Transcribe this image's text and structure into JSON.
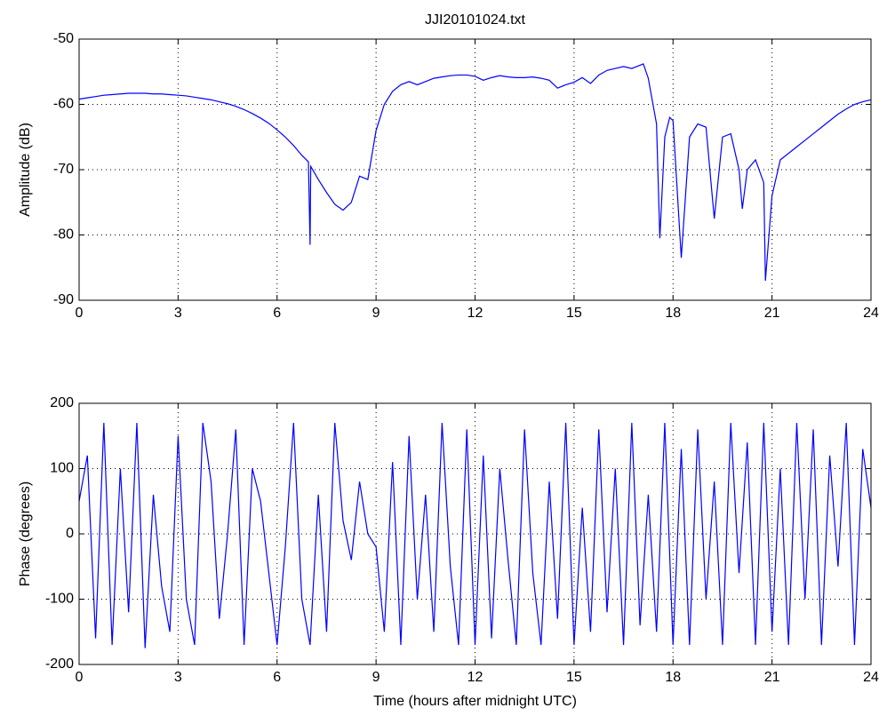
{
  "chart_data": [
    {
      "type": "line",
      "title": "JJI20101024.txt",
      "y_label": "Amplitude (dB)",
      "color": "#0000ff",
      "grid": true,
      "xlim": [
        0,
        24
      ],
      "xticks": [
        0,
        3,
        6,
        9,
        12,
        15,
        18,
        21,
        24
      ],
      "ylim": [
        -90,
        -50
      ],
      "yticks": [
        -90,
        -80,
        -70,
        -60,
        -50
      ],
      "x": [
        0,
        0.25,
        0.5,
        0.75,
        1,
        1.25,
        1.5,
        1.75,
        2,
        2.25,
        2.5,
        2.75,
        3,
        3.25,
        3.5,
        3.75,
        4,
        4.25,
        4.5,
        4.75,
        5,
        5.25,
        5.5,
        5.75,
        6,
        6.25,
        6.5,
        6.75,
        6.95,
        7,
        7.02,
        7.25,
        7.5,
        7.75,
        8,
        8.25,
        8.5,
        8.75,
        9,
        9.25,
        9.5,
        9.75,
        10,
        10.25,
        10.5,
        10.75,
        11,
        11.25,
        11.5,
        11.75,
        12,
        12.25,
        12.5,
        12.75,
        13,
        13.25,
        13.5,
        13.75,
        14,
        14.25,
        14.5,
        14.75,
        15,
        15.25,
        15.5,
        15.75,
        16,
        16.25,
        16.5,
        16.75,
        17,
        17.1,
        17.25,
        17.5,
        17.6,
        17.75,
        17.9,
        18,
        18.25,
        18.5,
        18.75,
        19,
        19.25,
        19.5,
        19.75,
        20,
        20.1,
        20.25,
        20.5,
        20.75,
        20.8,
        21,
        21.25,
        21.5,
        21.75,
        22,
        22.25,
        22.5,
        22.75,
        23,
        23.25,
        23.5,
        23.75,
        24
      ],
      "values": [
        -59.2,
        -59,
        -58.8,
        -58.6,
        -58.5,
        -58.4,
        -58.3,
        -58.3,
        -58.3,
        -58.4,
        -58.4,
        -58.5,
        -58.6,
        -58.7,
        -58.9,
        -59.1,
        -59.3,
        -59.6,
        -59.9,
        -60.3,
        -60.8,
        -61.4,
        -62.1,
        -62.9,
        -63.9,
        -65,
        -66.3,
        -67.8,
        -68.8,
        -81.5,
        -69.5,
        -71.5,
        -73.5,
        -75.3,
        -76.2,
        -75,
        -71,
        -71.5,
        -64,
        -60,
        -58,
        -57,
        -56.5,
        -57,
        -56.5,
        -56,
        -55.8,
        -55.6,
        -55.5,
        -55.5,
        -55.7,
        -56.3,
        -55.9,
        -55.6,
        -55.8,
        -55.9,
        -55.9,
        -55.8,
        -56,
        -56.3,
        -57.5,
        -57,
        -56.6,
        -55.9,
        -56.8,
        -55.5,
        -54.8,
        -54.5,
        -54.2,
        -54.5,
        -54,
        -53.8,
        -56,
        -63,
        -80.5,
        -65,
        -62,
        -62.5,
        -83.5,
        -65,
        -63,
        -63.5,
        -77.5,
        -65,
        -64.5,
        -70,
        -76,
        -70,
        -68.5,
        -72,
        -87,
        -74,
        -68.5,
        -67.5,
        -66.5,
        -65.5,
        -64.5,
        -63.5,
        -62.5,
        -61.5,
        -60.7,
        -60,
        -59.6,
        -59.3
      ]
    },
    {
      "type": "line",
      "y_label": "Phase (degrees)",
      "x_label": "Time (hours after midnight UTC)",
      "color": "#0000ff",
      "grid": true,
      "xlim": [
        0,
        24
      ],
      "xticks": [
        0,
        3,
        6,
        9,
        12,
        15,
        18,
        21,
        24
      ],
      "ylim": [
        -200,
        200
      ],
      "yticks": [
        -200,
        -100,
        0,
        100,
        200
      ],
      "x": [
        0,
        0.25,
        0.5,
        0.75,
        1,
        1.25,
        1.5,
        1.75,
        2,
        2.25,
        2.5,
        2.75,
        3,
        3.25,
        3.5,
        3.75,
        4,
        4.25,
        4.5,
        4.75,
        5,
        5.25,
        5.5,
        5.75,
        6,
        6.25,
        6.5,
        6.75,
        7,
        7.25,
        7.5,
        7.75,
        8,
        8.25,
        8.5,
        8.75,
        9,
        9.25,
        9.5,
        9.75,
        10,
        10.25,
        10.5,
        10.75,
        11,
        11.25,
        11.5,
        11.75,
        12,
        12.25,
        12.5,
        12.75,
        13,
        13.25,
        13.5,
        13.75,
        14,
        14.25,
        14.5,
        14.75,
        15,
        15.25,
        15.5,
        15.75,
        16,
        16.25,
        16.5,
        16.75,
        17,
        17.25,
        17.5,
        17.75,
        18,
        18.25,
        18.5,
        18.75,
        19,
        19.25,
        19.5,
        19.75,
        20,
        20.25,
        20.5,
        20.75,
        21,
        21.25,
        21.5,
        21.75,
        22,
        22.25,
        22.5,
        22.75,
        23,
        23.25,
        23.5,
        23.75,
        24
      ],
      "values": [
        50,
        120,
        -160,
        170,
        -170,
        100,
        -120,
        170,
        -175,
        60,
        -80,
        -150,
        150,
        -100,
        -170,
        170,
        80,
        -130,
        0,
        160,
        -170,
        100,
        50,
        -60,
        -170,
        -20,
        170,
        -100,
        -170,
        60,
        -150,
        170,
        20,
        -40,
        80,
        0,
        -20,
        -150,
        110,
        -170,
        150,
        -100,
        60,
        -150,
        170,
        -50,
        -170,
        160,
        -170,
        120,
        -160,
        100,
        -40,
        -170,
        160,
        -60,
        -170,
        80,
        -130,
        170,
        -170,
        40,
        -150,
        160,
        -120,
        100,
        -170,
        170,
        -140,
        60,
        -150,
        170,
        -170,
        130,
        -170,
        160,
        -100,
        80,
        -170,
        170,
        -60,
        140,
        -170,
        170,
        -150,
        100,
        -170,
        170,
        -100,
        160,
        -170,
        120,
        -50,
        170,
        -170,
        130,
        40
      ]
    }
  ]
}
